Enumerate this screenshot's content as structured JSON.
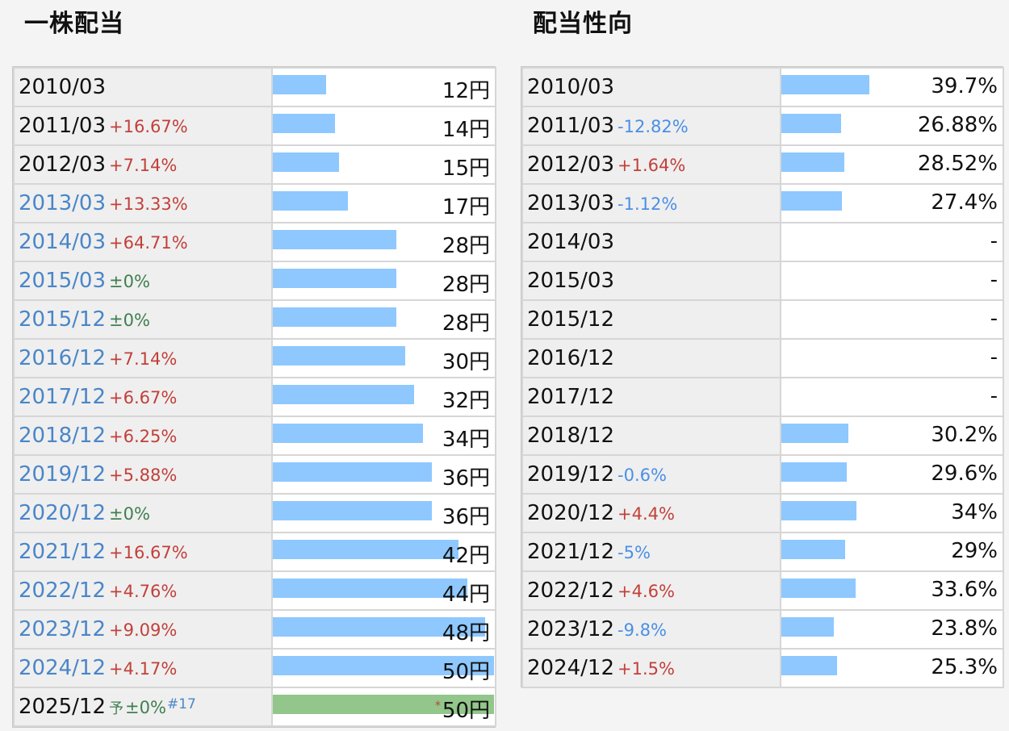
{
  "dividend": {
    "title": "一株配当",
    "bar_max": 50,
    "rows": [
      {
        "period": "2010/03",
        "link": false,
        "change": "",
        "change_dir": "",
        "value": 12,
        "amount": "12円"
      },
      {
        "period": "2011/03",
        "link": false,
        "change": "+16.67%",
        "change_dir": "up",
        "value": 14,
        "amount": "14円"
      },
      {
        "period": "2012/03",
        "link": false,
        "change": "+7.14%",
        "change_dir": "up",
        "value": 15,
        "amount": "15円"
      },
      {
        "period": "2013/03",
        "link": true,
        "change": "+13.33%",
        "change_dir": "up",
        "value": 17,
        "amount": "17円"
      },
      {
        "period": "2014/03",
        "link": true,
        "change": "+64.71%",
        "change_dir": "up",
        "value": 28,
        "amount": "28円"
      },
      {
        "period": "2015/03",
        "link": true,
        "change": "±0%",
        "change_dir": "flat",
        "value": 28,
        "amount": "28円"
      },
      {
        "period": "2015/12",
        "link": true,
        "change": "±0%",
        "change_dir": "flat",
        "value": 28,
        "amount": "28円"
      },
      {
        "period": "2016/12",
        "link": true,
        "change": "+7.14%",
        "change_dir": "up",
        "value": 30,
        "amount": "30円"
      },
      {
        "period": "2017/12",
        "link": true,
        "change": "+6.67%",
        "change_dir": "up",
        "value": 32,
        "amount": "32円"
      },
      {
        "period": "2018/12",
        "link": true,
        "change": "+6.25%",
        "change_dir": "up",
        "value": 34,
        "amount": "34円"
      },
      {
        "period": "2019/12",
        "link": true,
        "change": "+5.88%",
        "change_dir": "up",
        "value": 36,
        "amount": "36円"
      },
      {
        "period": "2020/12",
        "link": true,
        "change": "±0%",
        "change_dir": "flat",
        "value": 36,
        "amount": "36円"
      },
      {
        "period": "2021/12",
        "link": true,
        "change": "+16.67%",
        "change_dir": "up",
        "value": 42,
        "amount": "42円"
      },
      {
        "period": "2022/12",
        "link": true,
        "change": "+4.76%",
        "change_dir": "up",
        "value": 44,
        "amount": "44円"
      },
      {
        "period": "2023/12",
        "link": true,
        "change": "+9.09%",
        "change_dir": "up",
        "value": 48,
        "amount": "48円"
      },
      {
        "period": "2024/12",
        "link": true,
        "change": "+4.17%",
        "change_dir": "up",
        "value": 50,
        "amount": "50円"
      },
      {
        "period": "2025/12",
        "link": false,
        "forecast_mark": "予",
        "change": "±0%",
        "change_dir": "flat",
        "ref": "#17",
        "value": 50,
        "asterisk": "*",
        "amount": "50円",
        "forecast": true
      }
    ]
  },
  "payout": {
    "title": "配当性向",
    "bar_max": 100,
    "rows": [
      {
        "period": "2010/03",
        "change": "",
        "change_dir": "",
        "value": 39.7,
        "amount": "39.7%"
      },
      {
        "period": "2011/03",
        "change": "-12.82%",
        "change_dir": "down",
        "value": 26.88,
        "amount": "26.88%"
      },
      {
        "period": "2012/03",
        "change": "+1.64%",
        "change_dir": "up",
        "value": 28.52,
        "amount": "28.52%"
      },
      {
        "period": "2013/03",
        "change": "-1.12%",
        "change_dir": "down",
        "value": 27.4,
        "amount": "27.4%"
      },
      {
        "period": "2014/03",
        "change": "",
        "change_dir": "",
        "value": null,
        "amount": "-"
      },
      {
        "period": "2015/03",
        "change": "",
        "change_dir": "",
        "value": null,
        "amount": "-"
      },
      {
        "period": "2015/12",
        "change": "",
        "change_dir": "",
        "value": null,
        "amount": "-"
      },
      {
        "period": "2016/12",
        "change": "",
        "change_dir": "",
        "value": null,
        "amount": "-"
      },
      {
        "period": "2017/12",
        "change": "",
        "change_dir": "",
        "value": null,
        "amount": "-"
      },
      {
        "period": "2018/12",
        "change": "",
        "change_dir": "",
        "value": 30.2,
        "amount": "30.2%"
      },
      {
        "period": "2019/12",
        "change": "-0.6%",
        "change_dir": "down",
        "value": 29.6,
        "amount": "29.6%"
      },
      {
        "period": "2020/12",
        "change": "+4.4%",
        "change_dir": "up",
        "value": 34,
        "amount": "34%"
      },
      {
        "period": "2021/12",
        "change": "-5%",
        "change_dir": "down",
        "value": 29,
        "amount": "29%"
      },
      {
        "period": "2022/12",
        "change": "+4.6%",
        "change_dir": "up",
        "value": 33.6,
        "amount": "33.6%"
      },
      {
        "period": "2023/12",
        "change": "-9.8%",
        "change_dir": "down",
        "value": 23.8,
        "amount": "23.8%"
      },
      {
        "period": "2024/12",
        "change": "+1.5%",
        "change_dir": "up",
        "value": 25.3,
        "amount": "25.3%"
      }
    ]
  },
  "colors": {
    "bar": "#8ec8ff",
    "forecast_bar": "#92c68a",
    "up": "#c2403a",
    "down": "#4a8fe6",
    "flat": "#3f7f4f",
    "link": "#4a86c8"
  }
}
